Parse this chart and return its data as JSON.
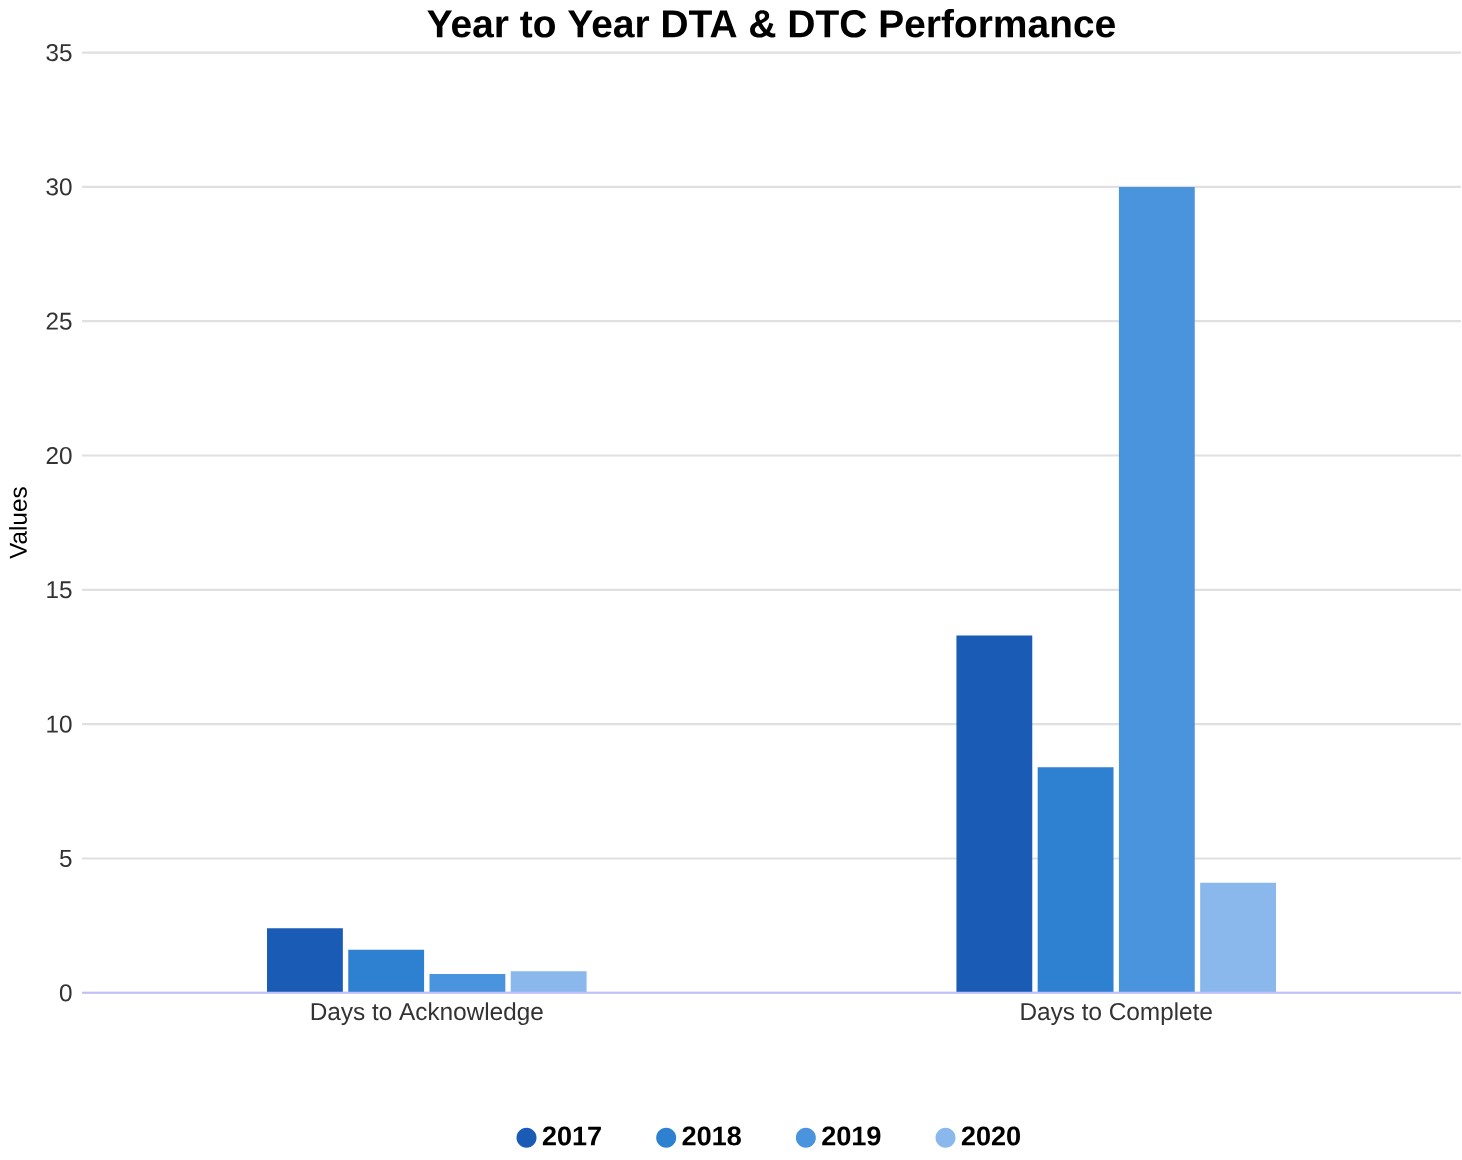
{
  "chart_data": {
    "type": "bar",
    "title": "Year to Year DTA & DTC Performance",
    "ylabel": "Values",
    "categories": [
      "Days to Acknowledge",
      "Days to Complete"
    ],
    "series": [
      {
        "name": "2017",
        "color": "#1a5bb5",
        "values": [
          2.4,
          13.3
        ]
      },
      {
        "name": "2018",
        "color": "#2e80d0",
        "values": [
          1.6,
          8.4
        ]
      },
      {
        "name": "2019",
        "color": "#4a94de",
        "values": [
          0.7,
          30
        ]
      },
      {
        "name": "2020",
        "color": "#8ab8ec",
        "values": [
          0.8,
          4.1
        ]
      }
    ],
    "ylim": [
      0,
      35
    ],
    "yticks": [
      0,
      5,
      10,
      15,
      20,
      25,
      30,
      35
    ],
    "grid": "y",
    "legend": "bottom"
  }
}
